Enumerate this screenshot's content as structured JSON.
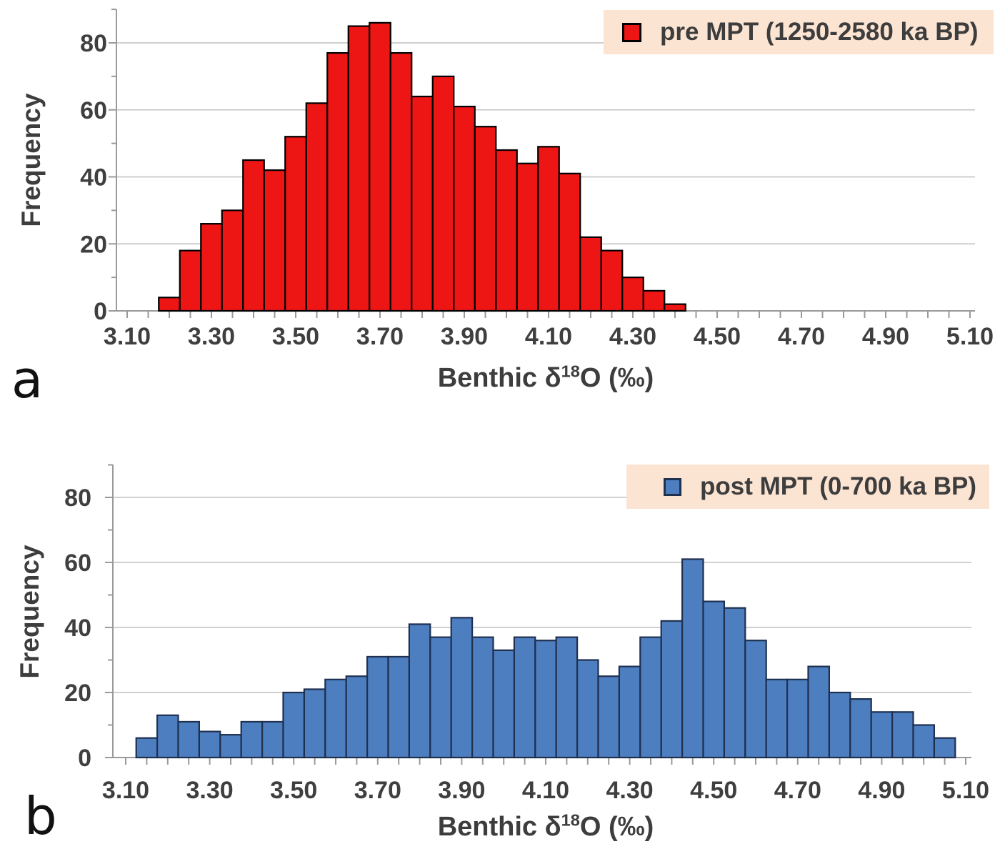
{
  "figure": {
    "panels": [
      {
        "label": "a"
      },
      {
        "label": "b"
      }
    ]
  },
  "chart_data": [
    {
      "type": "bar",
      "panel": "a",
      "legend_label": "pre MPT (1250-2580 ka BP)",
      "legend_bg": "#fce4d3",
      "legend_position": "top-right",
      "bar_color": "#ee1515",
      "bar_border": "#000000",
      "xlabel": "Benthic δ¹⁸O (‰)",
      "xlabel_parts": {
        "pre": "Benthic δ",
        "sup": "18",
        "post": "O (‰)"
      },
      "ylabel": "Frequency",
      "bin_width": 0.05,
      "bin_centers": [
        3.2,
        3.25,
        3.3,
        3.35,
        3.4,
        3.45,
        3.5,
        3.55,
        3.6,
        3.65,
        3.7,
        3.75,
        3.8,
        3.85,
        3.9,
        3.95,
        4.0,
        4.05,
        4.1,
        4.15,
        4.2,
        4.25,
        4.3,
        4.35,
        4.4
      ],
      "values": [
        4,
        18,
        26,
        30,
        45,
        42,
        52,
        62,
        77,
        85,
        86,
        77,
        64,
        70,
        61,
        55,
        48,
        44,
        49,
        41,
        22,
        18,
        10,
        6,
        2
      ],
      "x_tick_labels": [
        "3.10",
        "3.30",
        "3.50",
        "3.70",
        "3.90",
        "4.10",
        "4.30",
        "4.50",
        "4.70",
        "4.90",
        "5.10"
      ],
      "y_tick_labels": [
        "0",
        "20",
        "40",
        "60",
        "80"
      ],
      "xlim": [
        3.075,
        5.11
      ],
      "ylim": [
        0,
        90
      ],
      "grid": true
    },
    {
      "type": "bar",
      "panel": "b",
      "legend_label": "post MPT (0-700 ka BP)",
      "legend_bg": "#fce4d3",
      "legend_position": "top-right",
      "bar_color": "#4d7ebf",
      "bar_border": "#1f3050",
      "xlabel": "Benthic δ¹⁸O (‰)",
      "xlabel_parts": {
        "pre": "Benthic δ",
        "sup": "18",
        "post": "O (‰)"
      },
      "ylabel": "Frequency",
      "bin_width": 0.05,
      "bin_centers": [
        3.15,
        3.2,
        3.25,
        3.3,
        3.35,
        3.4,
        3.45,
        3.5,
        3.55,
        3.6,
        3.65,
        3.7,
        3.75,
        3.8,
        3.85,
        3.9,
        3.95,
        4.0,
        4.05,
        4.1,
        4.15,
        4.2,
        4.25,
        4.3,
        4.35,
        4.4,
        4.45,
        4.5,
        4.55,
        4.6,
        4.65,
        4.7,
        4.75,
        4.8,
        4.85,
        4.9,
        4.95,
        5.0,
        5.05
      ],
      "values": [
        6,
        13,
        11,
        8,
        7,
        11,
        11,
        20,
        21,
        24,
        25,
        31,
        31,
        41,
        37,
        43,
        37,
        33,
        37,
        36,
        37,
        30,
        25,
        28,
        37,
        42,
        61,
        48,
        46,
        36,
        24,
        24,
        28,
        20,
        18,
        14,
        14,
        10,
        6
      ],
      "x_tick_labels": [
        "3.10",
        "3.30",
        "3.50",
        "3.70",
        "3.90",
        "4.10",
        "4.30",
        "4.50",
        "4.70",
        "4.90",
        "5.10"
      ],
      "y_tick_labels": [
        "0",
        "20",
        "40",
        "60",
        "80"
      ],
      "xlim": [
        3.075,
        5.11
      ],
      "ylim": [
        0,
        90
      ],
      "grid": true
    }
  ]
}
